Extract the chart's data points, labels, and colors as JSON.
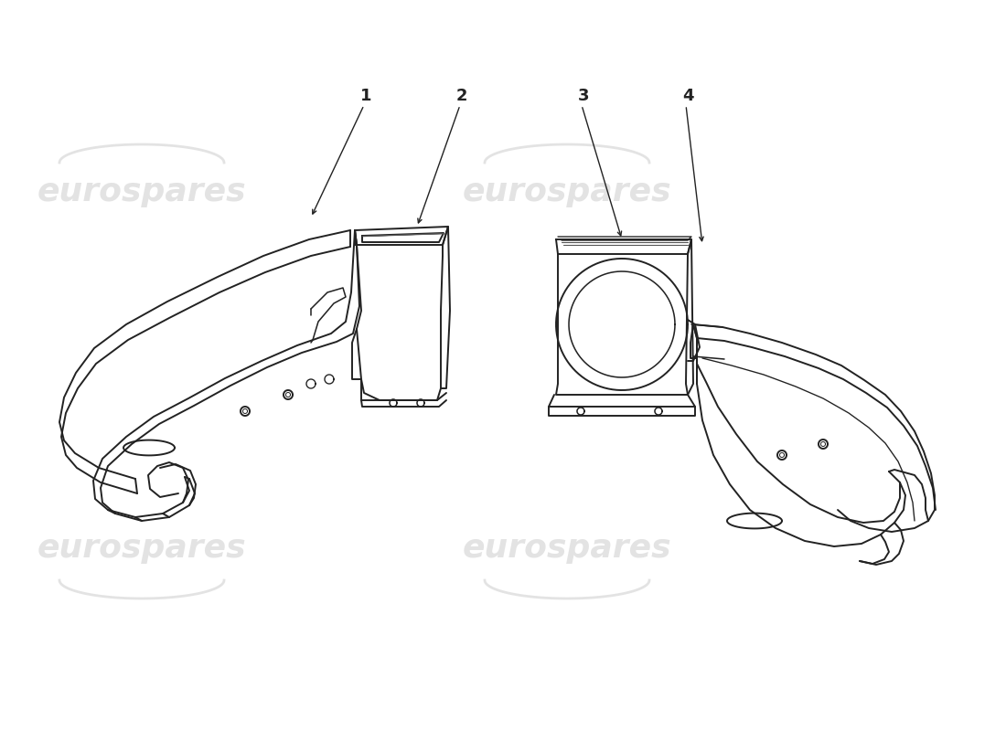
{
  "background_color": "#ffffff",
  "line_color": "#222222",
  "watermark_color": "#c8c8c8",
  "watermark_text": "eurospares",
  "watermark_alpha": 0.5,
  "part_numbers": [
    "1",
    "2",
    "3",
    "4"
  ],
  "figsize": [
    11.0,
    8.0
  ],
  "dpi": 100
}
